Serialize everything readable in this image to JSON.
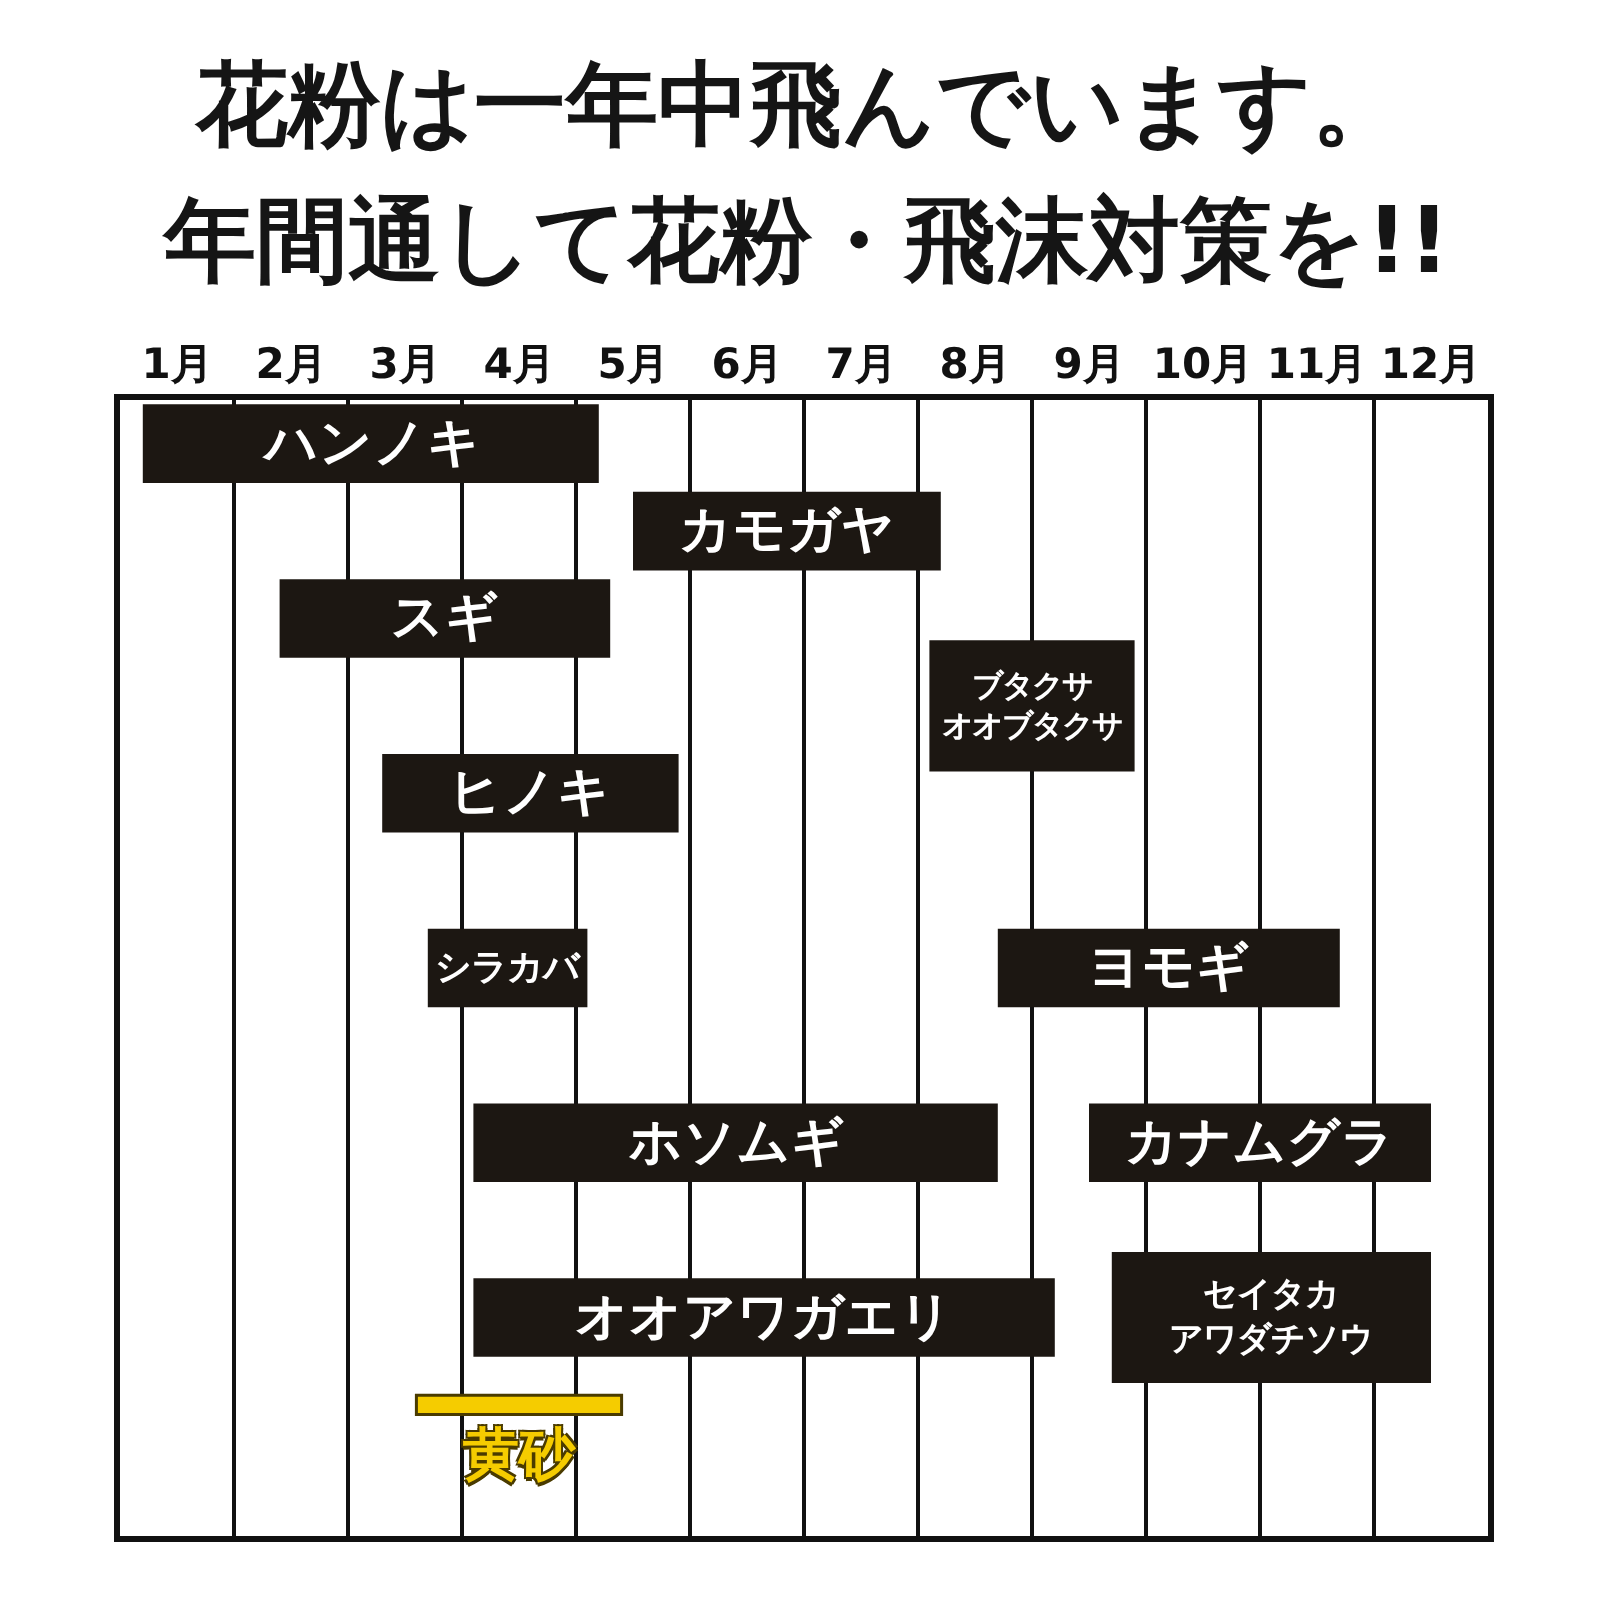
{
  "chart_data": {
    "type": "bar",
    "orientation": "horizontal",
    "title": "花粉は一年中飛んでいます。",
    "subtitle": "年間通して花粉・飛沫対策を!!",
    "categories": [
      null,
      null,
      null,
      null,
      null,
      null,
      null,
      null,
      null,
      null,
      null,
      null,
      null
    ],
    "xlim": [
      0,
      12
    ],
    "xticks": [
      {
        "value": 0.5,
        "label": "1月"
      },
      {
        "value": 1.5,
        "label": "2月"
      },
      {
        "value": 2.5,
        "label": "3月"
      },
      {
        "value": 3.5,
        "label": "4月"
      },
      {
        "value": 4.5,
        "label": "5月"
      },
      {
        "value": 5.5,
        "label": "6月"
      },
      {
        "value": 6.5,
        "label": "7月"
      },
      {
        "value": 7.5,
        "label": "8月"
      },
      {
        "value": 8.5,
        "label": "9月"
      },
      {
        "value": 9.5,
        "label": "10月"
      },
      {
        "value": 10.5,
        "label": "11月"
      },
      {
        "value": 11.5,
        "label": "12月"
      },
      {
        "value": 1,
        "label": null
      },
      {
        "value": 2,
        "label": null
      },
      {
        "value": 3,
        "label": null
      },
      {
        "value": 4,
        "label": null
      },
      {
        "value": 5,
        "label": null
      },
      {
        "value": 6,
        "label": null
      },
      {
        "value": 7,
        "label": null
      },
      {
        "value": 8,
        "label": null
      },
      {
        "value": 9,
        "label": null
      },
      {
        "value": 10,
        "label": null
      },
      {
        "value": 11,
        "label": null
      }
    ],
    "grid": "x",
    "tick_labels": "x",
    "series": [
      {
        "color": "#1c1712",
        "base": [
          0.2,
          4.5,
          1.4,
          7.1,
          2.3,
          null,
          2.7,
          null,
          3.1,
          null,
          3.1,
          null,
          null
        ],
        "values": [
          4.0,
          2.7,
          2.9,
          1.8,
          2.6,
          null,
          1.4,
          null,
          4.6,
          null,
          5.1,
          null,
          null
        ],
        "value_labels": [
          "ハンノキ",
          "カモガヤ",
          "スギ",
          "ブタクサオオブタクサ",
          "ヒノキ",
          null,
          "シラカバ",
          null,
          "ホソムギ",
          null,
          "オオアワガエリ",
          null,
          null
        ]
      },
      {
        "color": "#1c1712",
        "base": [
          null,
          null,
          null,
          null,
          null,
          null,
          7.7,
          null,
          8.5,
          null,
          8.7,
          null,
          null
        ],
        "values": [
          null,
          null,
          null,
          null,
          null,
          null,
          3.0,
          null,
          3.0,
          null,
          2.8,
          null,
          null
        ],
        "value_labels": [
          null,
          null,
          null,
          null,
          null,
          null,
          "ヨモギ",
          null,
          "カナムグラ",
          null,
          "セイタカアワダチソウ",
          null,
          null
        ]
      },
      {
        "color": "#f5cc00",
        "base": [
          null,
          null,
          null,
          null,
          null,
          null,
          null,
          null,
          null,
          null,
          null,
          2.6,
          null
        ],
        "values": [
          null,
          null,
          null,
          null,
          null,
          null,
          null,
          null,
          null,
          null,
          null,
          1.8,
          null
        ],
        "value_labels": [
          null,
          null,
          null,
          null,
          null,
          null,
          null,
          null,
          null,
          null,
          null,
          "黄砂",
          null
        ]
      }
    ]
  }
}
